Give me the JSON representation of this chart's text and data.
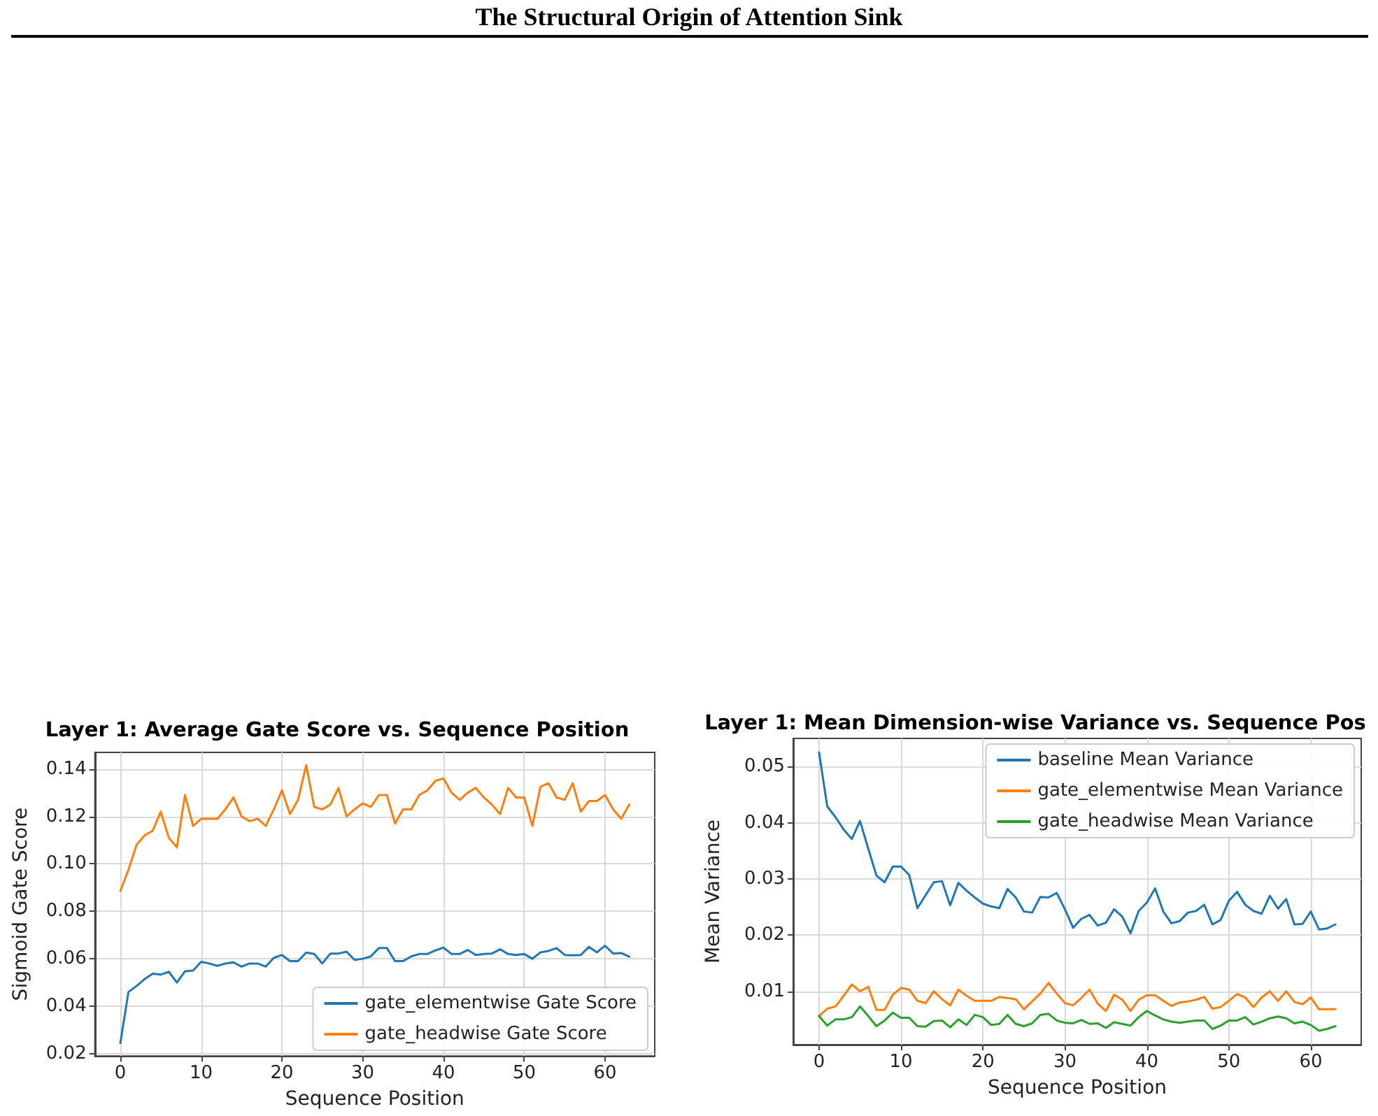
{
  "chart_data": [
    {
      "type": "line",
      "title": "Layer 1: Average Gate Score vs. Sequence Position",
      "xlabel": "Sequence Position",
      "ylabel": "Sigmoid Gate Score",
      "annotations": [
        "The Structural Origin of Attention Sink"
      ],
      "x": [
        0,
        1,
        2,
        3,
        4,
        5,
        6,
        7,
        8,
        9,
        10,
        11,
        12,
        13,
        14,
        15,
        16,
        17,
        18,
        19,
        20,
        21,
        22,
        23,
        24,
        25,
        26,
        27,
        28,
        29,
        30,
        31,
        32,
        33,
        34,
        35,
        36,
        37,
        38,
        39,
        40,
        41,
        42,
        43,
        44,
        45,
        46,
        47,
        48,
        49,
        50,
        51,
        52,
        53,
        54,
        55,
        56,
        57,
        58,
        59,
        60,
        61,
        62,
        63
      ],
      "series": [
        {
          "name": "gate_elementwise Gate Score",
          "color": "#1f77b4",
          "values": [
            0.0245,
            0.046,
            0.0485,
            0.0514,
            0.0537,
            0.0533,
            0.0545,
            0.05,
            0.0547,
            0.055,
            0.0587,
            0.058,
            0.057,
            0.058,
            0.0585,
            0.0567,
            0.058,
            0.058,
            0.0567,
            0.0604,
            0.0616,
            0.059,
            0.059,
            0.0626,
            0.062,
            0.058,
            0.0622,
            0.0622,
            0.063,
            0.0595,
            0.06,
            0.061,
            0.0645,
            0.0645,
            0.059,
            0.059,
            0.061,
            0.062,
            0.062,
            0.0635,
            0.0647,
            0.062,
            0.062,
            0.0637,
            0.0616,
            0.062,
            0.0622,
            0.064,
            0.062,
            0.0616,
            0.062,
            0.06,
            0.0627,
            0.0633,
            0.0645,
            0.0616,
            0.0614,
            0.0616,
            0.065,
            0.0627,
            0.0655,
            0.0622,
            0.0624,
            0.0609
          ]
        },
        {
          "name": "gate_headwise Gate Score",
          "color": "#ff7f0e",
          "values": [
            0.0886,
            0.0975,
            0.108,
            0.112,
            0.114,
            0.122,
            0.111,
            0.107,
            0.129,
            0.116,
            0.119,
            0.119,
            0.119,
            0.123,
            0.128,
            0.12,
            0.118,
            0.119,
            0.116,
            0.123,
            0.131,
            0.121,
            0.127,
            0.1416,
            0.124,
            0.123,
            0.125,
            0.132,
            0.12,
            0.123,
            0.1255,
            0.124,
            0.129,
            0.129,
            0.117,
            0.123,
            0.123,
            0.129,
            0.131,
            0.135,
            0.136,
            0.13,
            0.127,
            0.13,
            0.132,
            0.128,
            0.125,
            0.121,
            0.132,
            0.128,
            0.128,
            0.116,
            0.1325,
            0.134,
            0.128,
            0.127,
            0.134,
            0.122,
            0.1265,
            0.1265,
            0.129,
            0.123,
            0.119,
            0.125
          ]
        }
      ],
      "xlim": [
        -3.15,
        66.15
      ],
      "xticks": [
        0,
        10,
        20,
        30,
        40,
        50,
        60
      ],
      "ylim": [
        0.019,
        0.147
      ],
      "yticks": [
        0.02,
        0.04,
        0.06,
        0.08,
        {
          "value": 0.1,
          "label": "0.10"
        },
        0.12,
        0.14
      ],
      "grid": true,
      "legend": "bottom right",
      "marker": "none",
      "line_style": "solid"
    },
    {
      "type": "line",
      "title": "Layer 1: Mean Dimension-wise Variance vs. Sequence Pos",
      "xlabel": "Sequence Position",
      "ylabel": "Mean Variance",
      "x": [
        0,
        1,
        2,
        3,
        4,
        5,
        6,
        7,
        8,
        9,
        10,
        11,
        12,
        13,
        14,
        15,
        16,
        17,
        18,
        19,
        20,
        21,
        22,
        23,
        24,
        25,
        26,
        27,
        28,
        29,
        30,
        31,
        32,
        33,
        34,
        35,
        36,
        37,
        38,
        39,
        40,
        41,
        42,
        43,
        44,
        45,
        46,
        47,
        48,
        49,
        50,
        51,
        52,
        53,
        54,
        55,
        56,
        57,
        58,
        59,
        60,
        61,
        62,
        63
      ],
      "series": [
        {
          "name": "baseline Mean Variance",
          "color": "#1f77b4",
          "values": [
            0.0525,
            0.0429,
            0.041,
            0.0388,
            0.0371,
            0.0403,
            0.0354,
            0.0306,
            0.0294,
            0.0322,
            0.0322,
            0.0307,
            0.0248,
            0.0271,
            0.0294,
            0.0296,
            0.0253,
            0.0293,
            0.0279,
            0.0267,
            0.0256,
            0.0251,
            0.0248,
            0.0282,
            0.0267,
            0.0242,
            0.024,
            0.0268,
            0.0267,
            0.0275,
            0.0246,
            0.0213,
            0.0229,
            0.0236,
            0.0217,
            0.0222,
            0.0246,
            0.0233,
            0.0203,
            0.0243,
            0.0258,
            0.0283,
            0.0242,
            0.0221,
            0.0225,
            0.024,
            0.0243,
            0.0254,
            0.0219,
            0.0227,
            0.0261,
            0.0277,
            0.0254,
            0.0243,
            0.0238,
            0.027,
            0.0247,
            0.0264,
            0.0219,
            0.022,
            0.0242,
            0.021,
            0.0212,
            0.0219
          ]
        },
        {
          "name": "gate_elementwise Mean Variance",
          "color": "#ff7f0e",
          "values": [
            0.0056,
            0.0069,
            0.0073,
            0.0092,
            0.0112,
            0.01,
            0.0108,
            0.0067,
            0.0067,
            0.0094,
            0.0106,
            0.0103,
            0.0083,
            0.0079,
            0.01,
            0.0086,
            0.0075,
            0.0103,
            0.0092,
            0.0083,
            0.0083,
            0.0083,
            0.009,
            0.0088,
            0.0086,
            0.0068,
            0.0082,
            0.0096,
            0.0115,
            0.0096,
            0.0079,
            0.0075,
            0.0088,
            0.0103,
            0.0078,
            0.0065,
            0.0094,
            0.0085,
            0.0065,
            0.0085,
            0.0093,
            0.0093,
            0.0083,
            0.0074,
            0.008,
            0.0082,
            0.0085,
            0.009,
            0.0069,
            0.0072,
            0.0083,
            0.0095,
            0.0089,
            0.0072,
            0.0089,
            0.01,
            0.0083,
            0.01,
            0.0081,
            0.0077,
            0.0089,
            0.0068,
            0.0068,
            0.0068
          ]
        },
        {
          "name": "gate_headwise Mean Variance",
          "color": "#2ca02c",
          "values": [
            0.0056,
            0.0039,
            0.005,
            0.005,
            0.0054,
            0.0073,
            0.0056,
            0.0038,
            0.0048,
            0.0062,
            0.0053,
            0.0053,
            0.0038,
            0.0037,
            0.0047,
            0.0048,
            0.0036,
            0.005,
            0.004,
            0.0058,
            0.0054,
            0.004,
            0.0042,
            0.0058,
            0.0042,
            0.0038,
            0.0043,
            0.0058,
            0.006,
            0.0048,
            0.0044,
            0.0043,
            0.0049,
            0.0042,
            0.0043,
            0.0035,
            0.0045,
            0.0042,
            0.0039,
            0.0054,
            0.0065,
            0.0057,
            0.005,
            0.0046,
            0.0044,
            0.0046,
            0.0048,
            0.0048,
            0.0033,
            0.0039,
            0.0048,
            0.0048,
            0.0054,
            0.0041,
            0.0046,
            0.0052,
            0.0055,
            0.0052,
            0.0043,
            0.0046,
            0.004,
            0.003,
            0.0033,
            0.0038
          ]
        }
      ],
      "xlim": [
        -3.15,
        66.15
      ],
      "xticks": [
        0,
        10,
        20,
        30,
        40,
        50,
        60
      ],
      "ylim": [
        0.0005,
        0.055
      ],
      "yticks": [
        0.01,
        0.02,
        0.03,
        0.04,
        0.05
      ],
      "grid": true,
      "legend": "top right",
      "marker": "none",
      "line_style": "solid"
    }
  ]
}
